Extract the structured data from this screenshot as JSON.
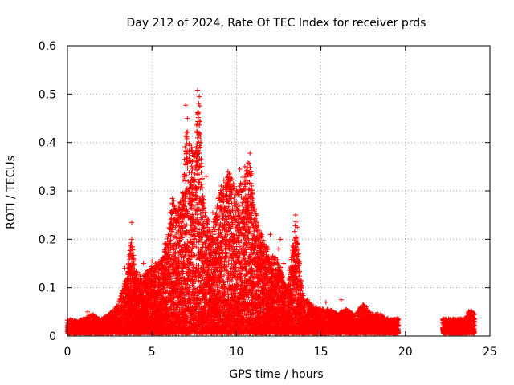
{
  "chart_data": {
    "type": "scatter",
    "title": "Day 212 of 2024, Rate Of TEC Index for receiver prds",
    "xlabel": "GPS time / hours",
    "ylabel": "ROTI / TECUs",
    "xlim": [
      0,
      25
    ],
    "ylim": [
      0,
      0.6
    ],
    "xticks": [
      "0",
      "5",
      "10",
      "15",
      "20",
      "25"
    ],
    "yticks": [
      "0",
      "0.1",
      "0.2",
      "0.3",
      "0.4",
      "0.5",
      "0.6"
    ],
    "grid": true,
    "marker": "+",
    "series_color": "#ff0000",
    "series": [
      {
        "name": "ROTI",
        "segments": [
          [
            0,
            19.6
          ],
          [
            22.2,
            24.1
          ]
        ],
        "envelope": [
          [
            0.0,
            0.03
          ],
          [
            0.5,
            0.025
          ],
          [
            1.0,
            0.03
          ],
          [
            1.5,
            0.04
          ],
          [
            2.0,
            0.03
          ],
          [
            2.5,
            0.04
          ],
          [
            3.0,
            0.06
          ],
          [
            3.5,
            0.12
          ],
          [
            3.8,
            0.2
          ],
          [
            4.0,
            0.13
          ],
          [
            4.5,
            0.12
          ],
          [
            5.0,
            0.14
          ],
          [
            5.5,
            0.15
          ],
          [
            6.0,
            0.22
          ],
          [
            6.2,
            0.28
          ],
          [
            6.5,
            0.25
          ],
          [
            6.8,
            0.3
          ],
          [
            7.0,
            0.42
          ],
          [
            7.5,
            0.37
          ],
          [
            7.8,
            0.5
          ],
          [
            8.0,
            0.3
          ],
          [
            8.5,
            0.2
          ],
          [
            9.0,
            0.3
          ],
          [
            9.5,
            0.34
          ],
          [
            10.0,
            0.3
          ],
          [
            10.5,
            0.33
          ],
          [
            10.8,
            0.37
          ],
          [
            11.0,
            0.27
          ],
          [
            11.5,
            0.2
          ],
          [
            12.0,
            0.17
          ],
          [
            12.5,
            0.15
          ],
          [
            13.0,
            0.09
          ],
          [
            13.5,
            0.24
          ],
          [
            13.8,
            0.12
          ],
          [
            14.0,
            0.07
          ],
          [
            14.5,
            0.06
          ],
          [
            15.0,
            0.05
          ],
          [
            15.5,
            0.05
          ],
          [
            16.0,
            0.04
          ],
          [
            16.5,
            0.05
          ],
          [
            17.0,
            0.04
          ],
          [
            17.5,
            0.06
          ],
          [
            18.0,
            0.04
          ],
          [
            18.5,
            0.04
          ],
          [
            19.0,
            0.03
          ],
          [
            19.6,
            0.03
          ],
          [
            22.2,
            0.03
          ],
          [
            22.5,
            0.03
          ],
          [
            23.0,
            0.03
          ],
          [
            23.5,
            0.03
          ],
          [
            23.8,
            0.05
          ],
          [
            24.1,
            0.04
          ]
        ],
        "highlights": [
          [
            7.0,
            0.477
          ],
          [
            7.1,
            0.45
          ],
          [
            7.1,
            0.422
          ],
          [
            7.7,
            0.508
          ],
          [
            7.8,
            0.495
          ],
          [
            7.75,
            0.462
          ],
          [
            7.8,
            0.42
          ],
          [
            7.7,
            0.388
          ],
          [
            7.2,
            0.372
          ],
          [
            7.0,
            0.355
          ],
          [
            6.8,
            0.282
          ],
          [
            6.3,
            0.28
          ],
          [
            3.8,
            0.235
          ],
          [
            3.8,
            0.2
          ],
          [
            9.5,
            0.34
          ],
          [
            10.5,
            0.35
          ],
          [
            10.8,
            0.378
          ],
          [
            10.9,
            0.335
          ],
          [
            10.2,
            0.345
          ],
          [
            9.1,
            0.31
          ],
          [
            8.2,
            0.33
          ],
          [
            11.2,
            0.25
          ],
          [
            13.5,
            0.25
          ],
          [
            13.6,
            0.225
          ],
          [
            12.6,
            0.2
          ],
          [
            12.0,
            0.21
          ],
          [
            9.0,
            0.285
          ],
          [
            8.8,
            0.248
          ],
          [
            10.1,
            0.26
          ],
          [
            10.6,
            0.27
          ],
          [
            7.5,
            0.31
          ],
          [
            8.6,
            0.255
          ],
          [
            10.3,
            0.287
          ],
          [
            11.5,
            0.21
          ],
          [
            12.5,
            0.18
          ],
          [
            5.8,
            0.18
          ],
          [
            6.2,
            0.255
          ],
          [
            9.3,
            0.22
          ],
          [
            17.7,
            0.06
          ],
          [
            15.3,
            0.07
          ],
          [
            16.2,
            0.075
          ],
          [
            23.8,
            0.05
          ],
          [
            1.2,
            0.05
          ],
          [
            14.2,
            0.075
          ],
          [
            12.8,
            0.15
          ],
          [
            4.5,
            0.15
          ],
          [
            5.0,
            0.155
          ],
          [
            3.4,
            0.14
          ],
          [
            7.3,
            0.265
          ],
          [
            8.0,
            0.27
          ]
        ]
      }
    ]
  }
}
